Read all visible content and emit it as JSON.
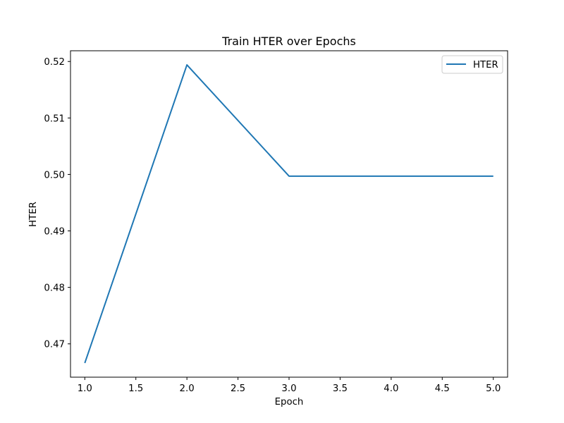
{
  "chart_data": {
    "type": "line",
    "title": "Train HTER over Epochs",
    "xlabel": "Epoch",
    "ylabel": "HTER",
    "x": [
      1.0,
      2.0,
      3.0,
      4.0,
      5.0
    ],
    "series": [
      {
        "name": "HTER",
        "color": "#1f77b4",
        "values": [
          0.4666,
          0.5194,
          0.4997,
          0.4997,
          0.4997
        ]
      }
    ],
    "xlim": [
      0.86,
      5.14
    ],
    "ylim": [
      0.4641,
      0.5219
    ],
    "xticks": [
      1.0,
      1.5,
      2.0,
      2.5,
      3.0,
      3.5,
      4.0,
      4.5,
      5.0
    ],
    "xtick_labels": [
      "1.0",
      "1.5",
      "2.0",
      "2.5",
      "3.0",
      "3.5",
      "4.0",
      "4.5",
      "5.0"
    ],
    "yticks": [
      0.47,
      0.48,
      0.49,
      0.5,
      0.51,
      0.52
    ],
    "ytick_labels": [
      "0.47",
      "0.48",
      "0.49",
      "0.50",
      "0.51",
      "0.52"
    ],
    "grid": false,
    "legend_position": "top-right"
  }
}
